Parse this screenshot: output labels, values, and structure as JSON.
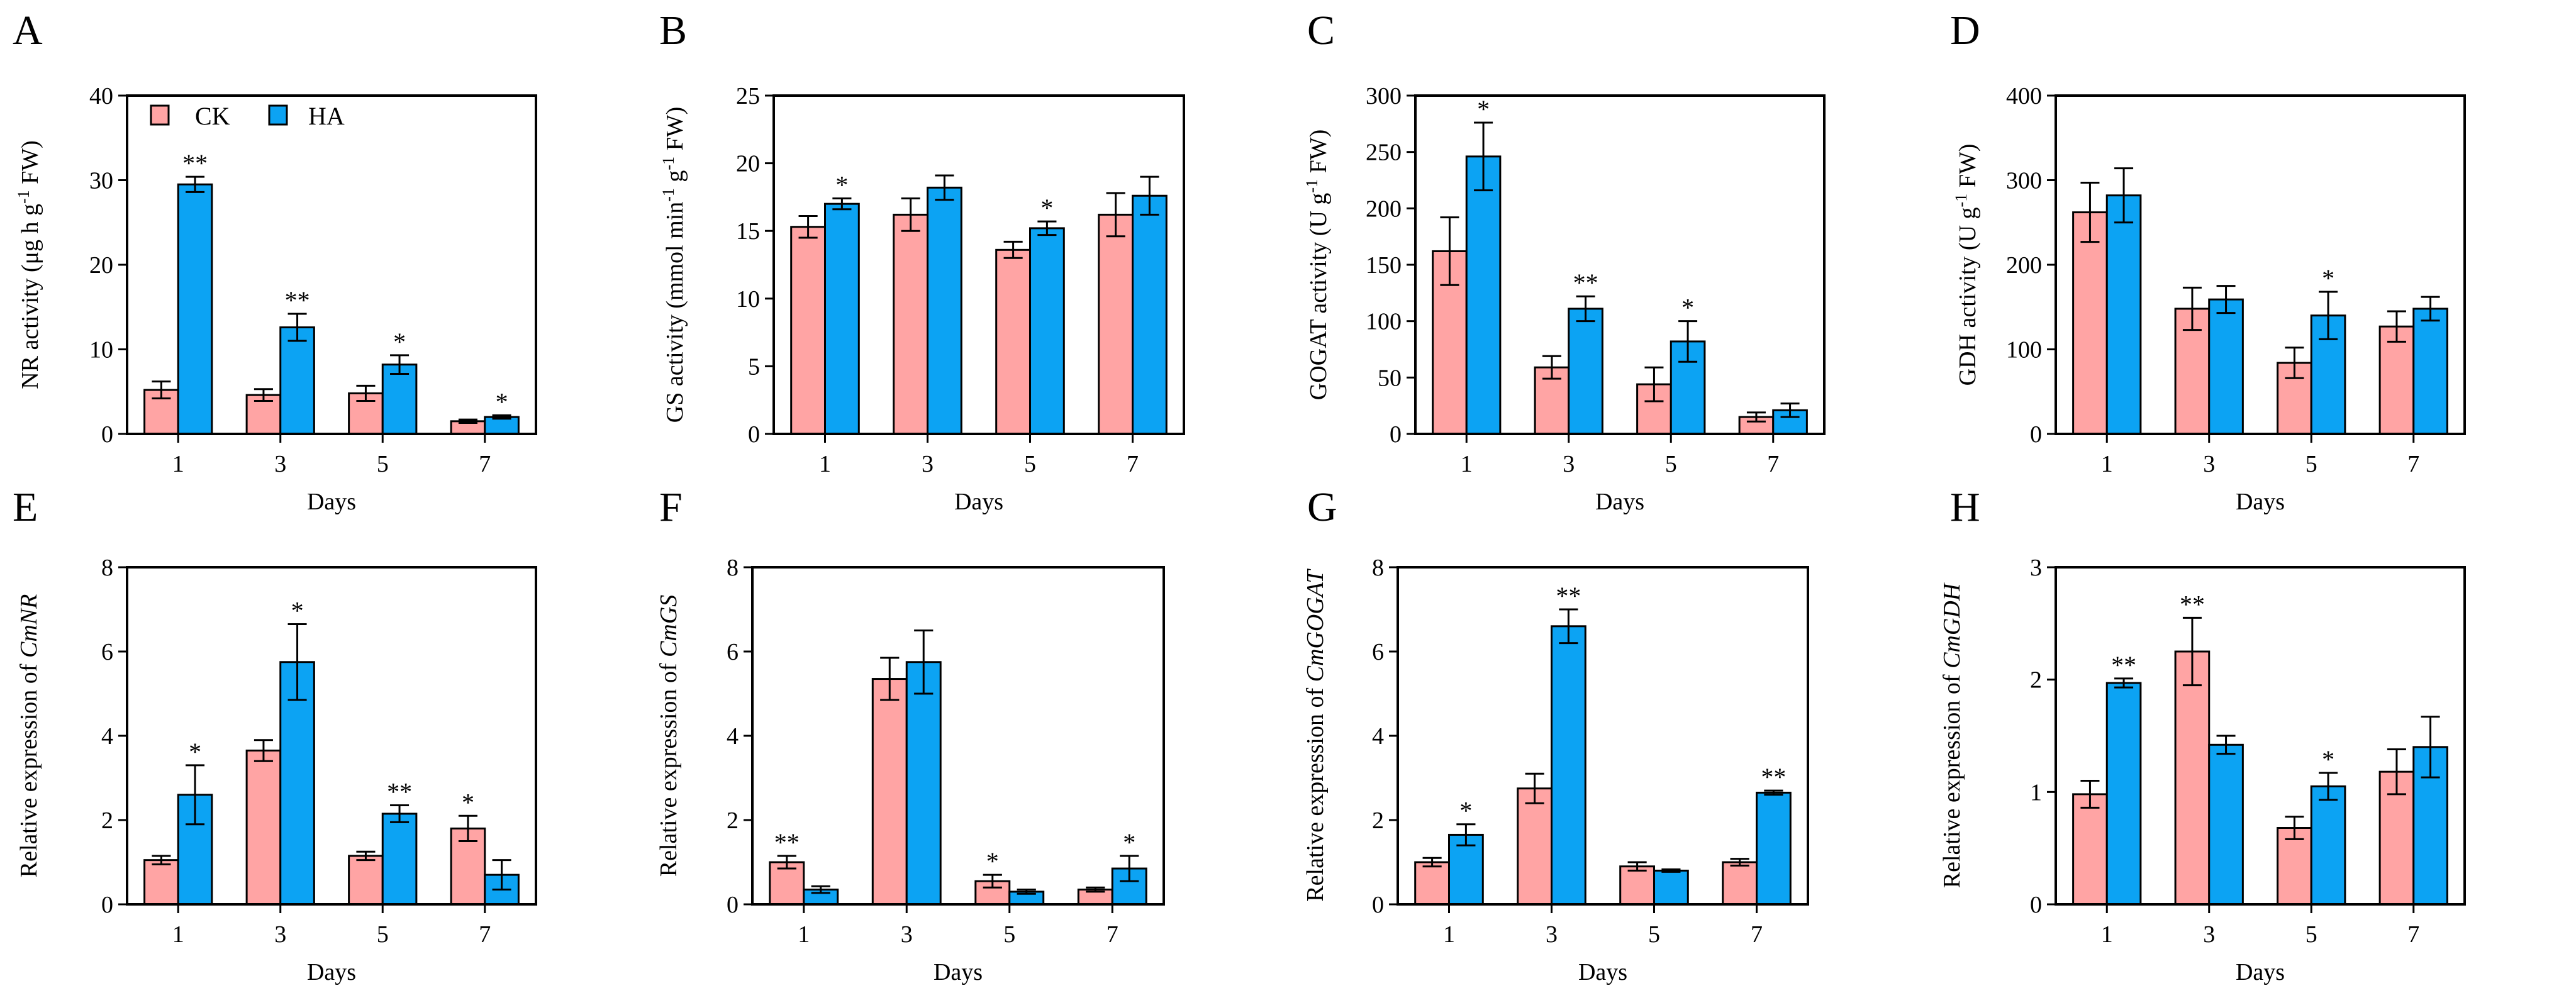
{
  "legend": {
    "items": [
      {
        "name": "CK",
        "color": "#FFA4A4"
      },
      {
        "name": "HA",
        "color": "#0CA3F3"
      }
    ]
  },
  "colors": {
    "ck": "#FFA4A4",
    "ha": "#0CA3F3",
    "axis": "#000000"
  },
  "chart_data": [
    {
      "panel": "A",
      "type": "bar",
      "categories": [
        "1",
        "3",
        "5",
        "7"
      ],
      "xlabel": "Days",
      "ylabel": {
        "prefix": "NR  activity (μg h g",
        "sup": "-1",
        "suffix": " FW)",
        "italic": ""
      },
      "ylim": [
        0,
        40
      ],
      "yticks": [
        "0",
        "10",
        "20",
        "30",
        "40"
      ],
      "series": [
        {
          "name": "CK",
          "values": [
            5.2,
            4.6,
            4.8,
            1.5
          ],
          "errors": [
            1.0,
            0.7,
            0.9,
            0.2
          ]
        },
        {
          "name": "HA",
          "values": [
            29.5,
            12.6,
            8.2,
            2.0
          ],
          "errors": [
            0.9,
            1.6,
            1.1,
            0.2
          ]
        }
      ],
      "annotations": [
        {
          "series": "HA",
          "category": "1",
          "text": "**"
        },
        {
          "series": "HA",
          "category": "3",
          "text": "**"
        },
        {
          "series": "HA",
          "category": "5",
          "text": "*"
        },
        {
          "series": "HA",
          "category": "7",
          "text": "*"
        }
      ]
    },
    {
      "panel": "B",
      "type": "bar",
      "categories": [
        "1",
        "3",
        "5",
        "7"
      ],
      "xlabel": "Days",
      "ylabel": {
        "prefix": "GS activity (mmol min",
        "sup": "-1",
        "mid": " g",
        "sup2": "-1",
        "suffix": " FW)",
        "italic": ""
      },
      "ylim": [
        0,
        25
      ],
      "yticks": [
        "0",
        "5",
        "10",
        "15",
        "20",
        "25"
      ],
      "series": [
        {
          "name": "CK",
          "values": [
            15.3,
            16.2,
            13.6,
            16.2
          ],
          "errors": [
            0.8,
            1.2,
            0.6,
            1.6
          ]
        },
        {
          "name": "HA",
          "values": [
            17.0,
            18.2,
            15.2,
            17.6
          ],
          "errors": [
            0.4,
            0.9,
            0.5,
            1.4
          ]
        }
      ],
      "annotations": [
        {
          "series": "HA",
          "category": "1",
          "text": "*"
        },
        {
          "series": "HA",
          "category": "5",
          "text": "*"
        }
      ]
    },
    {
      "panel": "C",
      "type": "bar",
      "categories": [
        "1",
        "3",
        "5",
        "7"
      ],
      "xlabel": "Days",
      "ylabel": {
        "prefix": "GOGAT activity (U g",
        "sup": "-1",
        "suffix": " FW)",
        "italic": ""
      },
      "ylim": [
        0,
        300
      ],
      "yticks": [
        "0",
        "50",
        "100",
        "150",
        "200",
        "250",
        "300"
      ],
      "series": [
        {
          "name": "CK",
          "values": [
            162,
            59,
            44,
            15
          ],
          "errors": [
            30,
            10,
            15,
            4
          ]
        },
        {
          "name": "HA",
          "values": [
            246,
            111,
            82,
            21
          ],
          "errors": [
            30,
            11,
            18,
            6
          ]
        }
      ],
      "annotations": [
        {
          "series": "HA",
          "category": "1",
          "text": "*"
        },
        {
          "series": "HA",
          "category": "3",
          "text": "**"
        },
        {
          "series": "HA",
          "category": "5",
          "text": "*"
        }
      ]
    },
    {
      "panel": "D",
      "type": "bar",
      "categories": [
        "1",
        "3",
        "5",
        "7"
      ],
      "xlabel": "Days",
      "ylabel": {
        "prefix": "GDH activity (U g",
        "sup": "-1",
        "suffix": " FW)",
        "italic": ""
      },
      "ylim": [
        0,
        400
      ],
      "yticks": [
        "0",
        "100",
        "200",
        "300",
        "400"
      ],
      "series": [
        {
          "name": "CK",
          "values": [
            262,
            148,
            84,
            127
          ],
          "errors": [
            35,
            25,
            18,
            18
          ]
        },
        {
          "name": "HA",
          "values": [
            282,
            159,
            140,
            148
          ],
          "errors": [
            32,
            16,
            28,
            14
          ]
        }
      ],
      "annotations": [
        {
          "series": "HA",
          "category": "5",
          "text": "*"
        }
      ]
    },
    {
      "panel": "E",
      "type": "bar",
      "categories": [
        "1",
        "3",
        "5",
        "7"
      ],
      "xlabel": "Days",
      "ylabel": {
        "prefix": "Relative expression of ",
        "italic": "CmNR"
      },
      "ylim": [
        0,
        8
      ],
      "yticks": [
        "0",
        "2",
        "4",
        "6",
        "8"
      ],
      "series": [
        {
          "name": "CK",
          "values": [
            1.05,
            3.65,
            1.15,
            1.8
          ],
          "errors": [
            0.1,
            0.25,
            0.1,
            0.3
          ]
        },
        {
          "name": "HA",
          "values": [
            2.6,
            5.75,
            2.15,
            0.7
          ],
          "errors": [
            0.7,
            0.9,
            0.2,
            0.35
          ]
        }
      ],
      "annotations": [
        {
          "series": "HA",
          "category": "1",
          "text": "*"
        },
        {
          "series": "HA",
          "category": "3",
          "text": "*"
        },
        {
          "series": "HA",
          "category": "5",
          "text": "**"
        },
        {
          "series": "CK",
          "category": "7",
          "text": "*"
        }
      ]
    },
    {
      "panel": "F",
      "type": "bar",
      "categories": [
        "1",
        "3",
        "5",
        "7"
      ],
      "xlabel": "Days",
      "ylabel": {
        "prefix": "Relative expression of ",
        "italic": "CmGS"
      },
      "ylim": [
        0,
        8
      ],
      "yticks": [
        "0",
        "2",
        "4",
        "6",
        "8"
      ],
      "series": [
        {
          "name": "CK",
          "values": [
            1.0,
            5.35,
            0.55,
            0.35
          ],
          "errors": [
            0.15,
            0.5,
            0.15,
            0.05
          ]
        },
        {
          "name": "HA",
          "values": [
            0.35,
            5.75,
            0.3,
            0.85
          ],
          "errors": [
            0.08,
            0.75,
            0.05,
            0.3
          ]
        }
      ],
      "annotations": [
        {
          "series": "CK",
          "category": "1",
          "text": "**"
        },
        {
          "series": "CK",
          "category": "5",
          "text": "*"
        },
        {
          "series": "HA",
          "category": "7",
          "text": "*"
        }
      ]
    },
    {
      "panel": "G",
      "type": "bar",
      "categories": [
        "1",
        "3",
        "5",
        "7"
      ],
      "xlabel": "Days",
      "ylabel": {
        "prefix": "Relative expression of ",
        "italic": "CmGOGAT"
      },
      "ylim": [
        0,
        8
      ],
      "yticks": [
        "0",
        "2",
        "4",
        "6",
        "8"
      ],
      "series": [
        {
          "name": "CK",
          "values": [
            1.0,
            2.75,
            0.9,
            1.0
          ],
          "errors": [
            0.1,
            0.35,
            0.1,
            0.08
          ]
        },
        {
          "name": "HA",
          "values": [
            1.65,
            6.6,
            0.8,
            2.65
          ],
          "errors": [
            0.25,
            0.4,
            0.03,
            0.05
          ]
        }
      ],
      "annotations": [
        {
          "series": "HA",
          "category": "1",
          "text": "*"
        },
        {
          "series": "HA",
          "category": "3",
          "text": "**"
        },
        {
          "series": "HA",
          "category": "7",
          "text": "**"
        }
      ]
    },
    {
      "panel": "H",
      "type": "bar",
      "categories": [
        "1",
        "3",
        "5",
        "7"
      ],
      "xlabel": "Days",
      "ylabel": {
        "prefix": "Relative expression of ",
        "italic": "CmGDH"
      },
      "ylim": [
        0,
        3
      ],
      "yticks": [
        "0",
        "1",
        "2",
        "3"
      ],
      "series": [
        {
          "name": "CK",
          "values": [
            0.98,
            2.25,
            0.68,
            1.18
          ],
          "errors": [
            0.12,
            0.3,
            0.1,
            0.2
          ]
        },
        {
          "name": "HA",
          "values": [
            1.97,
            1.42,
            1.05,
            1.4
          ],
          "errors": [
            0.04,
            0.08,
            0.12,
            0.27
          ]
        }
      ],
      "annotations": [
        {
          "series": "HA",
          "category": "1",
          "text": "**"
        },
        {
          "series": "CK",
          "category": "3",
          "text": "**"
        },
        {
          "series": "HA",
          "category": "5",
          "text": "*"
        }
      ]
    }
  ]
}
